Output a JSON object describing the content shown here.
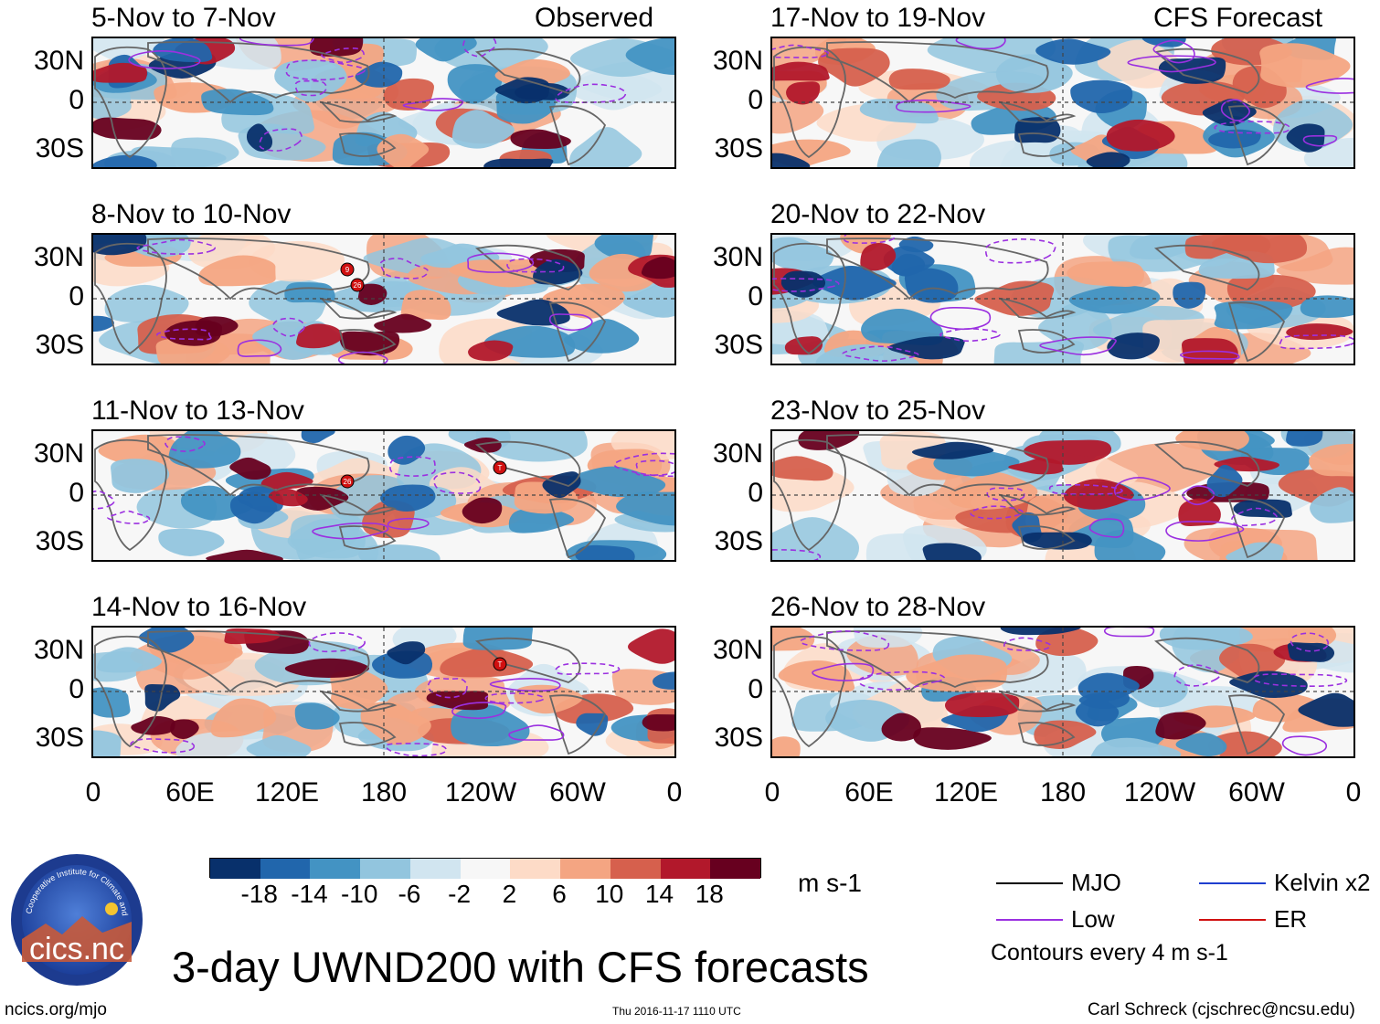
{
  "columns": {
    "left_label": "Observed",
    "right_label": "CFS Forecast"
  },
  "panels": [
    {
      "title": "5-Nov to 7-Nov",
      "column": "left",
      "markers": []
    },
    {
      "title": "8-Nov to 10-Nov",
      "column": "left",
      "markers": [
        {
          "label": "9"
        },
        {
          "label": "26"
        }
      ]
    },
    {
      "title": "11-Nov to 13-Nov",
      "column": "left",
      "markers": [
        {
          "label": "26"
        },
        {
          "label": "T"
        }
      ]
    },
    {
      "title": "14-Nov to 16-Nov",
      "column": "left",
      "markers": [
        {
          "label": "T"
        }
      ]
    },
    {
      "title": "17-Nov to 19-Nov",
      "column": "right",
      "markers": []
    },
    {
      "title": "20-Nov to 22-Nov",
      "column": "right",
      "markers": []
    },
    {
      "title": "23-Nov to 25-Nov",
      "column": "right",
      "markers": []
    },
    {
      "title": "26-Nov to 28-Nov",
      "column": "right",
      "markers": []
    }
  ],
  "lat_labels": [
    "30N",
    "0",
    "30S"
  ],
  "lon_labels": [
    "0",
    "60E",
    "120E",
    "180",
    "120W",
    "60W",
    "0"
  ],
  "colorbar": {
    "colors": [
      "#08306b",
      "#2166ac",
      "#4393c3",
      "#92c5de",
      "#d1e5f0",
      "#f7f7f7",
      "#fddbc7",
      "#f4a582",
      "#d6604d",
      "#b2182b",
      "#67001f"
    ],
    "ticks": [
      "-18",
      "-14",
      "-10",
      "-6",
      "-2",
      "2",
      "6",
      "10",
      "14",
      "18"
    ],
    "units": "m s-1"
  },
  "legend": {
    "items": [
      {
        "label": "MJO",
        "color": "#000000"
      },
      {
        "label": "Kelvin x2",
        "color": "#1f3fcf"
      },
      {
        "label": "Low",
        "color": "#9b30e0"
      },
      {
        "label": "ER",
        "color": "#d01010"
      }
    ],
    "contour_note": "Contours every 4 m s-1"
  },
  "logo": {
    "text": "cics.nc",
    "ring_text": "Cooperative Institute for Climate and Satellites"
  },
  "main_title": "3-day UWND200 with CFS forecasts",
  "footer": {
    "left": "ncics.org/mjo",
    "center": "Thu 2016-11-17 1110 UTC",
    "right": "Carl Schreck (cjschrec@ncsu.edu)"
  }
}
